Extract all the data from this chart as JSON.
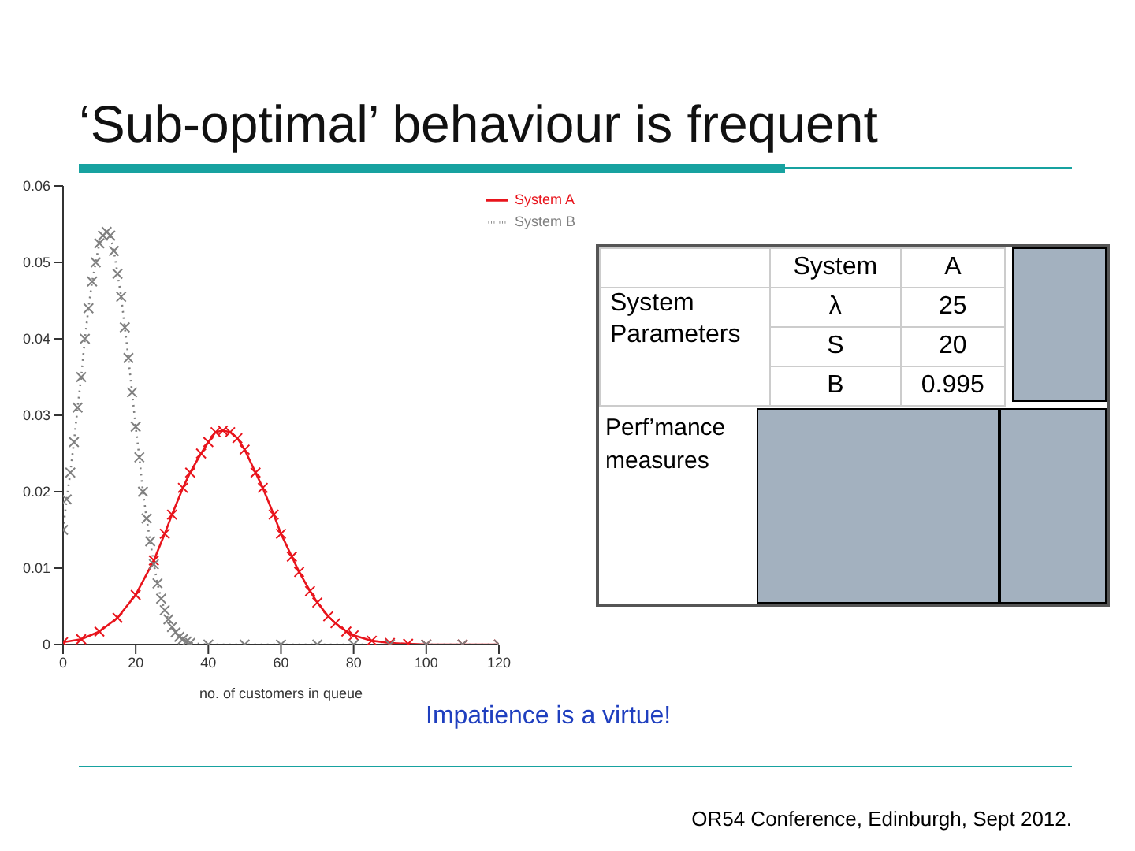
{
  "chart_data": [
    {
      "type": "line",
      "title": "‘Sub-optimal’ behaviour is frequent",
      "xlabel": "no. of customers in queue",
      "xlim": [
        0,
        120
      ],
      "xticks": [
        0,
        20,
        40,
        60,
        80,
        100,
        120
      ],
      "ylim": [
        0,
        0.06
      ],
      "yticks": [
        0,
        0.01,
        0.02,
        0.03,
        0.04,
        0.05,
        0.06
      ],
      "legend": "top right",
      "annotations": [
        "Impatience is a virtue!",
        "OR54 Conference, Edinburgh, Sept 2012."
      ],
      "series": [
        {
          "name": "System A",
          "color": "#e8141c",
          "marker": "cross",
          "line_style": "solid",
          "x": [
            0,
            5,
            10,
            15,
            20,
            25,
            28,
            30,
            33,
            35,
            38,
            40,
            42,
            44,
            46,
            48,
            50,
            53,
            55,
            58,
            60,
            63,
            65,
            68,
            70,
            73,
            75,
            78,
            80,
            85,
            90,
            95,
            100,
            110,
            120
          ],
          "values": [
            0.0003,
            0.0007,
            0.0017,
            0.0035,
            0.0065,
            0.011,
            0.0145,
            0.017,
            0.0205,
            0.0225,
            0.025,
            0.0265,
            0.0278,
            0.028,
            0.0278,
            0.027,
            0.0255,
            0.0225,
            0.0205,
            0.017,
            0.0145,
            0.0115,
            0.0095,
            0.007,
            0.0055,
            0.0037,
            0.0028,
            0.0017,
            0.0012,
            0.0005,
            0.0002,
            0.0001,
            0,
            0,
            0
          ]
        },
        {
          "name": "System B",
          "color": "#808080",
          "marker": "cross",
          "line_style": "dotted",
          "x": [
            0,
            1,
            2,
            3,
            4,
            5,
            6,
            7,
            8,
            9,
            10,
            11,
            12,
            13,
            14,
            15,
            16,
            17,
            18,
            19,
            20,
            21,
            22,
            23,
            24,
            25,
            26,
            27,
            28,
            29,
            30,
            31,
            32,
            33,
            34,
            35,
            40,
            50,
            60,
            70,
            80,
            90,
            100,
            110,
            120
          ],
          "values": [
            0.015,
            0.019,
            0.0225,
            0.0265,
            0.031,
            0.035,
            0.04,
            0.044,
            0.0475,
            0.05,
            0.0525,
            0.0535,
            0.054,
            0.0535,
            0.0515,
            0.0485,
            0.0455,
            0.0415,
            0.0375,
            0.033,
            0.0285,
            0.0245,
            0.02,
            0.0165,
            0.0135,
            0.0105,
            0.008,
            0.006,
            0.0045,
            0.0033,
            0.0023,
            0.0016,
            0.001,
            0.0007,
            0.0004,
            0.0002,
            0,
            0,
            0,
            0,
            0,
            0,
            0,
            0,
            0
          ]
        }
      ]
    },
    {
      "type": "other",
      "annotations": [
        "System",
        "A",
        "System Parameters",
        "λ",
        "25",
        "S",
        "20",
        "B",
        "0.995",
        "Perf’mance measures"
      ]
    }
  ]
}
